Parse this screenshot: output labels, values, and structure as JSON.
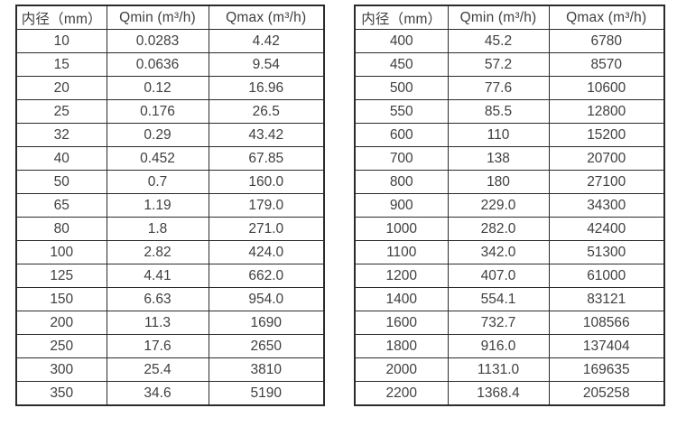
{
  "page": {
    "background": "#ffffff",
    "text_color": "#3f3f3f",
    "border_color": "#2b2b2b"
  },
  "tables": [
    {
      "name": "small-diameter-flow-table",
      "headers": [
        "内径（mm）",
        "Qmin (m³/h)",
        "Qmax (m³/h)"
      ],
      "rows": [
        [
          "10",
          "0.0283",
          "4.42"
        ],
        [
          "15",
          "0.0636",
          "9.54"
        ],
        [
          "20",
          "0.12",
          "16.96"
        ],
        [
          "25",
          "0.176",
          "26.5"
        ],
        [
          "32",
          "0.29",
          "43.42"
        ],
        [
          "40",
          "0.452",
          "67.85"
        ],
        [
          "50",
          "0.7",
          "160.0"
        ],
        [
          "65",
          "1.19",
          "179.0"
        ],
        [
          "80",
          "1.8",
          "271.0"
        ],
        [
          "100",
          "2.82",
          "424.0"
        ],
        [
          "125",
          "4.41",
          "662.0"
        ],
        [
          "150",
          "6.63",
          "954.0"
        ],
        [
          "200",
          "11.3",
          "1690"
        ],
        [
          "250",
          "17.6",
          "2650"
        ],
        [
          "300",
          "25.4",
          "3810"
        ],
        [
          "350",
          "34.6",
          "5190"
        ]
      ]
    },
    {
      "name": "large-diameter-flow-table",
      "headers": [
        "内径（mm）",
        "Qmin (m³/h)",
        "Qmax (m³/h)"
      ],
      "rows": [
        [
          "400",
          "45.2",
          "6780"
        ],
        [
          "450",
          "57.2",
          "8570"
        ],
        [
          "500",
          "77.6",
          "10600"
        ],
        [
          "550",
          "85.5",
          "12800"
        ],
        [
          "600",
          "110",
          "15200"
        ],
        [
          "700",
          "138",
          "20700"
        ],
        [
          "800",
          "180",
          "27100"
        ],
        [
          "900",
          "229.0",
          "34300"
        ],
        [
          "1000",
          "282.0",
          "42400"
        ],
        [
          "1100",
          "342.0",
          "51300"
        ],
        [
          "1200",
          "407.0",
          "61000"
        ],
        [
          "1400",
          "554.1",
          "83121"
        ],
        [
          "1600",
          "732.7",
          "108566"
        ],
        [
          "1800",
          "916.0",
          "137404"
        ],
        [
          "2000",
          "1131.0",
          "169635"
        ],
        [
          "2200",
          "1368.4",
          "205258"
        ]
      ]
    }
  ]
}
